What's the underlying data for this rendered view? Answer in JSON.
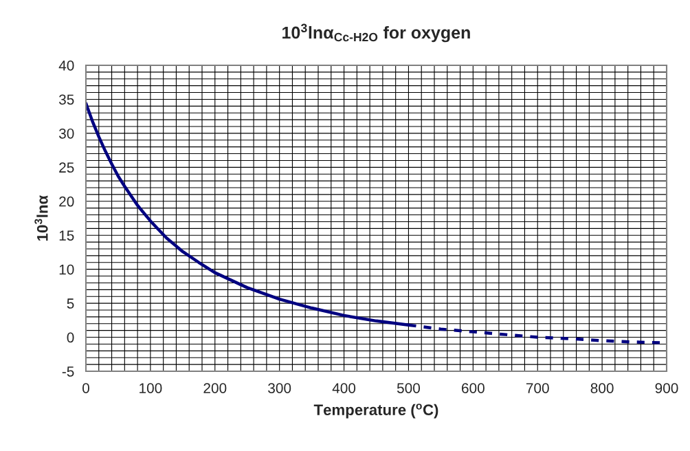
{
  "chart_data": {
    "type": "line",
    "title": "10$^{3}$lnα$_{Cc-H2O}$ for oxygen",
    "xlabel": "Temperature ($^{o}$C)",
    "ylabel": "10$^{3}$lnα",
    "series": [
      {
        "color": "#000080",
        "line_style": "solid",
        "x": [
          0,
          10,
          20,
          30,
          40,
          50,
          60,
          80,
          100,
          125,
          150,
          175,
          200,
          250,
          300,
          350,
          400,
          450,
          500
        ],
        "values": [
          34.4,
          31.8,
          29.5,
          27.4,
          25.5,
          23.7,
          22.2,
          19.4,
          17.1,
          14.6,
          12.6,
          11.0,
          9.5,
          7.3,
          5.6,
          4.3,
          3.2,
          2.4,
          1.8
        ]
      },
      {
        "color": "#000080",
        "line_style": "dashed",
        "x": [
          500,
          550,
          600,
          650,
          700,
          750,
          800,
          850,
          890
        ],
        "values": [
          1.8,
          1.2,
          0.8,
          0.4,
          0.0,
          -0.2,
          -0.5,
          -0.7,
          -0.8
        ]
      }
    ],
    "xlim": [
      0,
      900
    ],
    "ylim": [
      -5,
      40
    ],
    "xticks": [
      0,
      {
        "value": 20,
        "label": null
      },
      {
        "value": 40,
        "label": null
      },
      {
        "value": 60,
        "label": null
      },
      {
        "value": 80,
        "label": null
      },
      100,
      {
        "value": 120,
        "label": null
      },
      {
        "value": 140,
        "label": null
      },
      {
        "value": 160,
        "label": null
      },
      {
        "value": 180,
        "label": null
      },
      200,
      {
        "value": 220,
        "label": null
      },
      {
        "value": 240,
        "label": null
      },
      {
        "value": 260,
        "label": null
      },
      {
        "value": 280,
        "label": null
      },
      300,
      {
        "value": 320,
        "label": null
      },
      {
        "value": 340,
        "label": null
      },
      {
        "value": 360,
        "label": null
      },
      {
        "value": 380,
        "label": null
      },
      400,
      {
        "value": 420,
        "label": null
      },
      {
        "value": 440,
        "label": null
      },
      {
        "value": 460,
        "label": null
      },
      {
        "value": 480,
        "label": null
      },
      500,
      {
        "value": 520,
        "label": null
      },
      {
        "value": 540,
        "label": null
      },
      {
        "value": 560,
        "label": null
      },
      {
        "value": 580,
        "label": null
      },
      600,
      {
        "value": 620,
        "label": null
      },
      {
        "value": 640,
        "label": null
      },
      {
        "value": 660,
        "label": null
      },
      {
        "value": 680,
        "label": null
      },
      700,
      {
        "value": 720,
        "label": null
      },
      {
        "value": 740,
        "label": null
      },
      {
        "value": 760,
        "label": null
      },
      {
        "value": 780,
        "label": null
      },
      800,
      {
        "value": 820,
        "label": null
      },
      {
        "value": 840,
        "label": null
      },
      {
        "value": 860,
        "label": null
      },
      {
        "value": 880,
        "label": null
      },
      900
    ],
    "yticks": [
      -5,
      {
        "value": -4,
        "label": null
      },
      {
        "value": -3,
        "label": null
      },
      {
        "value": -2,
        "label": null
      },
      {
        "value": -1,
        "label": null
      },
      0,
      {
        "value": 1,
        "label": null
      },
      {
        "value": 2,
        "label": null
      },
      {
        "value": 3,
        "label": null
      },
      {
        "value": 4,
        "label": null
      },
      5,
      {
        "value": 6,
        "label": null
      },
      {
        "value": 7,
        "label": null
      },
      {
        "value": 8,
        "label": null
      },
      {
        "value": 9,
        "label": null
      },
      10,
      {
        "value": 11,
        "label": null
      },
      {
        "value": 12,
        "label": null
      },
      {
        "value": 13,
        "label": null
      },
      {
        "value": 14,
        "label": null
      },
      15,
      {
        "value": 16,
        "label": null
      },
      {
        "value": 17,
        "label": null
      },
      {
        "value": 18,
        "label": null
      },
      {
        "value": 19,
        "label": null
      },
      20,
      {
        "value": 21,
        "label": null
      },
      {
        "value": 22,
        "label": null
      },
      {
        "value": 23,
        "label": null
      },
      {
        "value": 24,
        "label": null
      },
      25,
      {
        "value": 26,
        "label": null
      },
      {
        "value": 27,
        "label": null
      },
      {
        "value": 28,
        "label": null
      },
      {
        "value": 29,
        "label": null
      },
      30,
      {
        "value": 31,
        "label": null
      },
      {
        "value": 32,
        "label": null
      },
      {
        "value": 33,
        "label": null
      },
      {
        "value": 34,
        "label": null
      },
      35,
      {
        "value": 36,
        "label": null
      },
      {
        "value": 37,
        "label": null
      },
      {
        "value": 38,
        "label": null
      },
      {
        "value": 39,
        "label": null
      },
      40
    ],
    "grid": true
  }
}
